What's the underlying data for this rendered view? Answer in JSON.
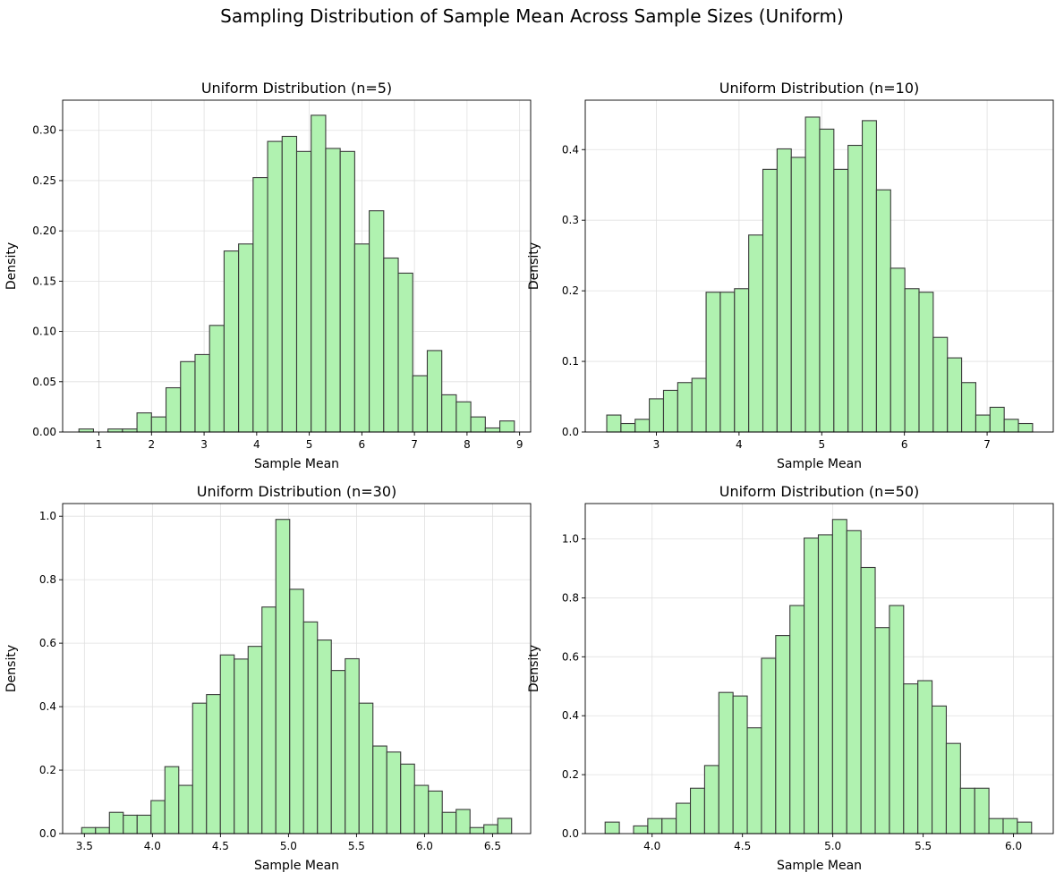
{
  "suptitle": "Sampling Distribution of Sample Mean Across Sample Sizes (Uniform)",
  "colors": {
    "bar_fill": "#b0f2b0",
    "bar_edge": "#3a3a3a",
    "grid": "#e0e0e0"
  },
  "chart_data": [
    {
      "type": "bar",
      "title": "Uniform Distribution (n=5)",
      "xlabel": "Sample Mean",
      "ylabel": "Density",
      "xlim": [
        0.31,
        9.21
      ],
      "ylim": [
        0,
        0.33
      ],
      "xticks": [
        1,
        2,
        3,
        4,
        5,
        6,
        7,
        8,
        9
      ],
      "xtick_labels": [
        "1",
        "2",
        "3",
        "4",
        "5",
        "6",
        "7",
        "8",
        "9"
      ],
      "yticks": [
        0,
        0.05,
        0.1,
        0.15,
        0.2,
        0.25,
        0.3
      ],
      "ytick_labels": [
        "0.00",
        "0.05",
        "0.10",
        "0.15",
        "0.20",
        "0.25",
        "0.30"
      ],
      "bin_start": 0.62,
      "bin_end": 8.9,
      "values": [
        0.003,
        0.0,
        0.003,
        0.003,
        0.019,
        0.015,
        0.044,
        0.07,
        0.077,
        0.106,
        0.18,
        0.187,
        0.253,
        0.289,
        0.294,
        0.279,
        0.315,
        0.282,
        0.279,
        0.187,
        0.22,
        0.173,
        0.158,
        0.056,
        0.081,
        0.037,
        0.03,
        0.015,
        0.004,
        0.011
      ],
      "grid": true
    },
    {
      "type": "bar",
      "title": "Uniform Distribution (n=10)",
      "xlabel": "Sample Mean",
      "ylabel": "Density",
      "xlim": [
        2.14,
        7.8
      ],
      "ylim": [
        0,
        0.47
      ],
      "xticks": [
        3,
        4,
        5,
        6,
        7
      ],
      "xtick_labels": [
        "3",
        "4",
        "5",
        "6",
        "7"
      ],
      "yticks": [
        0,
        0.1,
        0.2,
        0.3,
        0.4
      ],
      "ytick_labels": [
        "0.0",
        "0.1",
        "0.2",
        "0.3",
        "0.4"
      ],
      "bin_start": 2.4,
      "bin_end": 7.55,
      "values": [
        0.024,
        0.012,
        0.018,
        0.047,
        0.059,
        0.07,
        0.076,
        0.198,
        0.198,
        0.203,
        0.279,
        0.372,
        0.401,
        0.389,
        0.446,
        0.429,
        0.372,
        0.406,
        0.441,
        0.343,
        0.232,
        0.203,
        0.198,
        0.134,
        0.105,
        0.07,
        0.024,
        0.035,
        0.018,
        0.012
      ],
      "grid": true
    },
    {
      "type": "bar",
      "title": "Uniform Distribution (n=30)",
      "xlabel": "Sample Mean",
      "ylabel": "Density",
      "xlim": [
        3.34,
        6.78
      ],
      "ylim": [
        0,
        1.04
      ],
      "xticks": [
        3.5,
        4.0,
        4.5,
        5.0,
        5.5,
        6.0,
        6.5
      ],
      "xtick_labels": [
        "3.5",
        "4.0",
        "4.5",
        "5.0",
        "5.5",
        "6.0",
        "6.5"
      ],
      "yticks": [
        0,
        0.2,
        0.4,
        0.6,
        0.8,
        1.0
      ],
      "ytick_labels": [
        "0.0",
        "0.2",
        "0.4",
        "0.6",
        "0.8",
        "1.0"
      ],
      "bin_start": 3.48,
      "bin_end": 6.64,
      "values": [
        0.019,
        0.019,
        0.067,
        0.058,
        0.058,
        0.104,
        0.211,
        0.152,
        0.411,
        0.438,
        0.563,
        0.55,
        0.59,
        0.714,
        0.99,
        0.77,
        0.667,
        0.61,
        0.514,
        0.551,
        0.411,
        0.276,
        0.257,
        0.219,
        0.152,
        0.134,
        0.067,
        0.076,
        0.019,
        0.028,
        0.048
      ],
      "grid": true
    },
    {
      "type": "bar",
      "title": "Uniform Distribution (n=50)",
      "xlabel": "Sample Mean",
      "ylabel": "Density",
      "xlim": [
        3.63,
        6.22
      ],
      "ylim": [
        0,
        1.12
      ],
      "xticks": [
        4.0,
        4.5,
        5.0,
        5.5,
        6.0
      ],
      "xtick_labels": [
        "4.0",
        "4.5",
        "5.0",
        "5.5",
        "6.0"
      ],
      "yticks": [
        0,
        0.2,
        0.4,
        0.6,
        0.8,
        1.0
      ],
      "ytick_labels": [
        "0.0",
        "0.2",
        "0.4",
        "0.6",
        "0.8",
        "1.0"
      ],
      "bin_start": 3.74,
      "bin_end": 6.1,
      "values": [
        0.039,
        0.0,
        0.026,
        0.051,
        0.051,
        0.103,
        0.154,
        0.231,
        0.479,
        0.467,
        0.359,
        0.595,
        0.672,
        0.774,
        1.003,
        1.014,
        1.066,
        1.028,
        0.903,
        0.699,
        0.774,
        0.508,
        0.519,
        0.433,
        0.306,
        0.154,
        0.154,
        0.051,
        0.051,
        0.039
      ],
      "grid": true
    }
  ]
}
